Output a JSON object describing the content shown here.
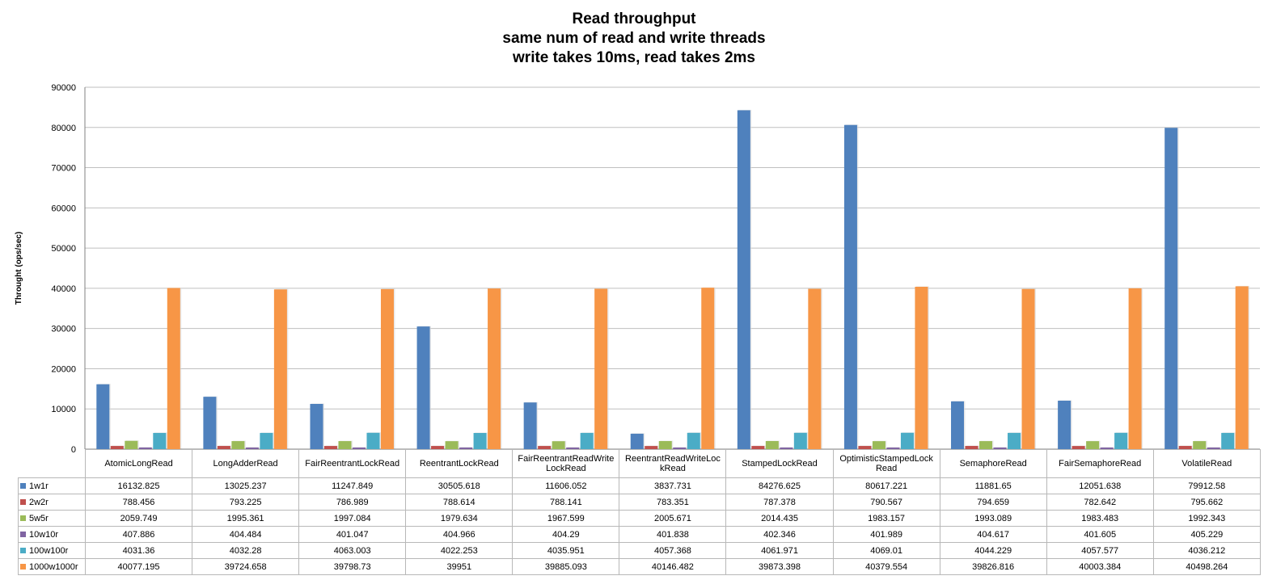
{
  "chart_data": {
    "type": "bar",
    "title": [
      "Read throughput",
      "same num of read and write threads",
      "write takes 10ms, read takes 2ms"
    ],
    "xlabel": "",
    "ylabel": "Throught (ops/sec)",
    "ylim": [
      0,
      90000
    ],
    "yticks": [
      "0",
      "10000",
      "20000",
      "30000",
      "40000",
      "50000",
      "60000",
      "70000",
      "80000",
      "90000"
    ],
    "grid": true,
    "legend": "data-table",
    "categories": [
      "AtomicLongRead",
      "LongAdderRead",
      "FairReentrantLockRead",
      "ReentrantLockRead",
      "FairReentrantReadWriteLockRead",
      "ReentrantReadWriteLockRead",
      "StampedLockRead",
      "OptimisticStampedLockRead",
      "SemaphoreRead",
      "FairSemaphoreRead",
      "VolatileRead"
    ],
    "category_label_lines": [
      [
        "AtomicLongRead"
      ],
      [
        "LongAdderRead"
      ],
      [
        "FairReentrantLockRead"
      ],
      [
        "ReentrantLockRead"
      ],
      [
        "FairReentrantReadWrite",
        "LockRead"
      ],
      [
        "ReentrantReadWriteLoc",
        "kRead"
      ],
      [
        "StampedLockRead"
      ],
      [
        "OptimisticStampedLock",
        "Read"
      ],
      [
        "SemaphoreRead"
      ],
      [
        "FairSemaphoreRead"
      ],
      [
        "VolatileRead"
      ]
    ],
    "series": [
      {
        "name": "1w1r",
        "color": "#4f81bd",
        "values": [
          16132.825,
          13025.237,
          11247.849,
          30505.618,
          11606.052,
          3837.731,
          84276.625,
          80617.221,
          11881.65,
          12051.638,
          79912.58
        ],
        "labels": [
          "16132.825",
          "13025.237",
          "11247.849",
          "30505.618",
          "11606.052",
          "3837.731",
          "84276.625",
          "80617.221",
          "11881.65",
          "12051.638",
          "79912.58"
        ]
      },
      {
        "name": "2w2r",
        "color": "#c0504d",
        "values": [
          788.456,
          793.225,
          786.989,
          788.614,
          788.141,
          783.351,
          787.378,
          790.567,
          794.659,
          782.642,
          795.662
        ],
        "labels": [
          "788.456",
          "793.225",
          "786.989",
          "788.614",
          "788.141",
          "783.351",
          "787.378",
          "790.567",
          "794.659",
          "782.642",
          "795.662"
        ]
      },
      {
        "name": "5w5r",
        "color": "#9bbb59",
        "values": [
          2059.749,
          1995.361,
          1997.084,
          1979.634,
          1967.599,
          2005.671,
          2014.435,
          1983.157,
          1993.089,
          1983.483,
          1992.343
        ],
        "labels": [
          "2059.749",
          "1995.361",
          "1997.084",
          "1979.634",
          "1967.599",
          "2005.671",
          "2014.435",
          "1983.157",
          "1993.089",
          "1983.483",
          "1992.343"
        ]
      },
      {
        "name": "10w10r",
        "color": "#8064a2",
        "values": [
          407.886,
          404.484,
          401.047,
          404.966,
          404.29,
          401.838,
          402.346,
          401.989,
          404.617,
          401.605,
          405.229
        ],
        "labels": [
          "407.886",
          "404.484",
          "401.047",
          "404.966",
          "404.29",
          "401.838",
          "402.346",
          "401.989",
          "404.617",
          "401.605",
          "405.229"
        ]
      },
      {
        "name": "100w100r",
        "color": "#4bacc6",
        "values": [
          4031.36,
          4032.28,
          4063.003,
          4022.253,
          4035.951,
          4057.368,
          4061.971,
          4069.01,
          4044.229,
          4057.577,
          4036.212
        ],
        "labels": [
          "4031.36",
          "4032.28",
          "4063.003",
          "4022.253",
          "4035.951",
          "4057.368",
          "4061.971",
          "4069.01",
          "4044.229",
          "4057.577",
          "4036.212"
        ]
      },
      {
        "name": "1000w1000r",
        "color": "#f79646",
        "values": [
          40077.195,
          39724.658,
          39798.73,
          39951,
          39885.093,
          40146.482,
          39873.398,
          40379.554,
          39826.816,
          40003.384,
          40498.264
        ],
        "labels": [
          "40077.195",
          "39724.658",
          "39798.73",
          "39951",
          "39885.093",
          "40146.482",
          "39873.398",
          "40379.554",
          "39826.816",
          "40003.384",
          "40498.264"
        ]
      }
    ]
  }
}
